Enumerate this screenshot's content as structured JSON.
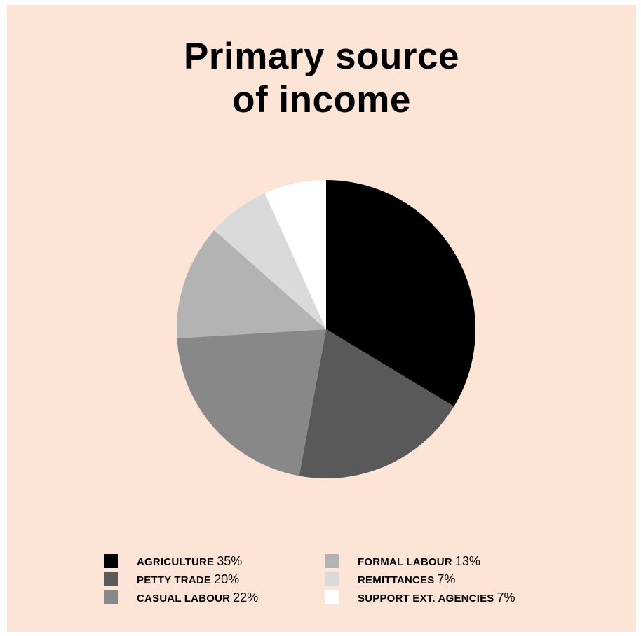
{
  "chart_data": {
    "type": "pie",
    "title_lines": [
      "Primary source",
      "of income"
    ],
    "unit": "%",
    "slices": [
      {
        "label": "AGRICULTURE",
        "value": 35,
        "color": "#000000"
      },
      {
        "label": "PETTY TRADE",
        "value": 20,
        "color": "#595959"
      },
      {
        "label": "CASUAL LABOUR",
        "value": 22,
        "color": "#888888"
      },
      {
        "label": "FORMAL LABOUR",
        "value": 13,
        "color": "#b3b3b3"
      },
      {
        "label": "REMITTANCES",
        "value": 7,
        "color": "#dadada"
      },
      {
        "label": "SUPPORT EXT. AGENCIES",
        "value": 7,
        "color": "#ffffff"
      }
    ],
    "legend_placement": "bottom"
  },
  "colors": {
    "background": "#fce4d6",
    "text": "#000000"
  }
}
